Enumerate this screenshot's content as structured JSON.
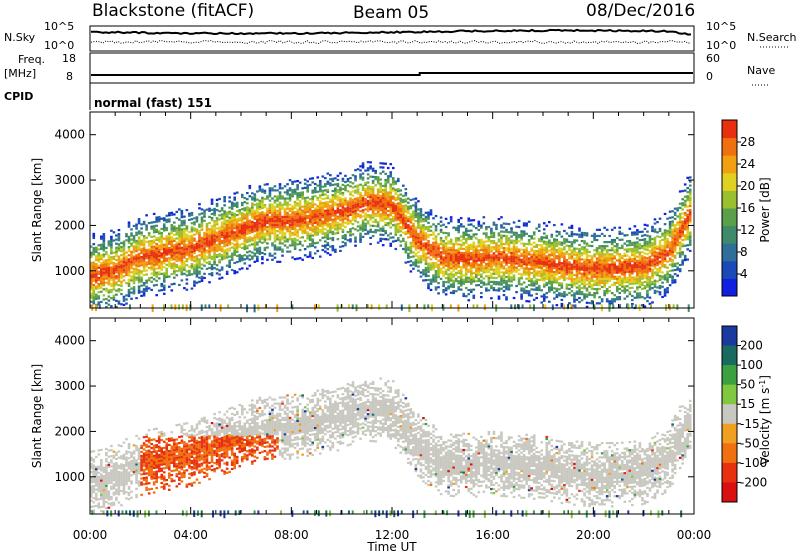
{
  "header": {
    "radar": "Blackstone (fitACF)",
    "beam": "Beam 05",
    "date": "08/Dec/2016"
  },
  "noise_panel": {
    "left_label": "N.Sky",
    "right_label": "N.Search",
    "left_ticks": [
      "10^5",
      "10^0"
    ],
    "right_ticks": [
      "10^5",
      "10^0"
    ]
  },
  "freq_panel": {
    "left_label": "Freq.",
    "left_unit": "[MHz]",
    "right_label": "Nave",
    "left_ticks": [
      "18",
      "8"
    ],
    "right_ticks": [
      "60",
      "0"
    ]
  },
  "cpid": {
    "label": "CPID",
    "value": "normal (fast) 151"
  },
  "chart_data": [
    {
      "type": "heatmap",
      "quantity": "Power",
      "ylabel": "Slant Range [km]",
      "xlabel": "Time UT",
      "x_ticks": [
        "00:00",
        "04:00",
        "08:00",
        "12:00",
        "16:00",
        "20:00",
        "00:00"
      ],
      "y_ticks": [
        1000,
        2000,
        3000,
        4000
      ],
      "ylim": [
        180,
        4500
      ],
      "xlim_hours": [
        0,
        24
      ],
      "colorbar": {
        "label": "Power [dB]",
        "ticks": [
          4,
          8,
          12,
          16,
          20,
          24,
          28
        ],
        "range": [
          0,
          32
        ],
        "colors": [
          "#1020e0",
          "#1a4ab8",
          "#2e6e98",
          "#3e8a6a",
          "#5aa04a",
          "#9ac030",
          "#e0d020",
          "#f0a010",
          "#f07010",
          "#e83010"
        ]
      },
      "echo_band": {
        "hours": [
          0,
          1,
          2,
          3,
          4,
          5,
          6,
          7,
          8,
          9,
          10,
          11,
          12,
          13,
          14,
          15,
          16,
          17,
          18,
          19,
          20,
          21,
          22,
          23,
          24
        ],
        "range_km": [
          900,
          1000,
          1300,
          1400,
          1500,
          1700,
          1900,
          2100,
          2100,
          2200,
          2300,
          2500,
          2450,
          1700,
          1300,
          1250,
          1300,
          1250,
          1200,
          1100,
          1050,
          1050,
          1100,
          1400,
          2400
        ]
      }
    },
    {
      "type": "heatmap",
      "quantity": "Velocity",
      "ylabel": "Slant Range [km]",
      "xlabel": "Time UT",
      "x_ticks": [
        "00:00",
        "04:00",
        "08:00",
        "12:00",
        "16:00",
        "20:00",
        "00:00"
      ],
      "y_ticks": [
        1000,
        2000,
        3000,
        4000
      ],
      "ylim": [
        180,
        4500
      ],
      "xlim_hours": [
        0,
        24
      ],
      "colorbar": {
        "label": "Velocity [m s",
        "label_superscript": "-1",
        "label_close": "]",
        "ticks": [
          200,
          100,
          50,
          15,
          -15,
          -50,
          -100,
          -200
        ],
        "colors": [
          "#1a3aa0",
          "#1a6a60",
          "#3aa040",
          "#80c840",
          "#c8c8c0",
          "#f0a020",
          "#f07010",
          "#e83010",
          "#d81010"
        ]
      }
    }
  ]
}
